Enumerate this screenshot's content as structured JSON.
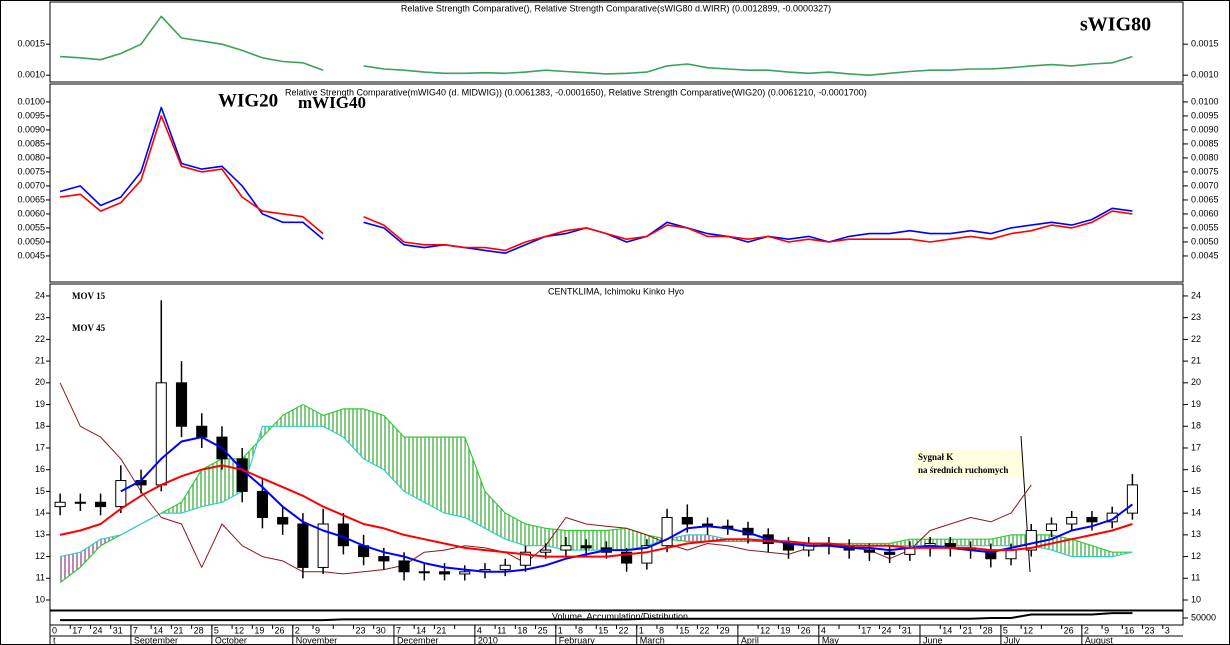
{
  "chart_data": [
    {
      "type": "line",
      "title": "Relative Strength Comparative(), Relative Strength Comparative(sWIG80 d.WIRR) (0.0012899, -0.0000327)",
      "ylim": [
        0.00089,
        0.00218
      ],
      "yticks": [
        {
          "value": 0.001,
          "label": "0.0010"
        },
        0.0015
      ],
      "tick_color": "#ff0000",
      "series": [
        {
          "name": "sWIG80",
          "color": "#3aa35a",
          "values": [
            0.0013,
            0.00128,
            0.00125,
            0.00135,
            0.0015,
            0.00195,
            0.0016,
            0.00155,
            0.0015,
            0.0014,
            0.00128,
            0.00122,
            0.0012,
            0.00108,
            null,
            0.00115,
            0.0011,
            0.00108,
            0.00105,
            0.00103,
            0.00103,
            0.00104,
            0.00103,
            0.00105,
            0.00108,
            0.00106,
            0.00104,
            0.00102,
            0.00103,
            0.00105,
            0.00115,
            0.00118,
            0.00112,
            0.0011,
            0.00108,
            0.00108,
            0.00105,
            0.00103,
            0.00105,
            0.00102,
            0.001,
            0.00103,
            0.00106,
            0.00108,
            0.00108,
            0.0011,
            0.0011,
            0.00112,
            0.00115,
            0.00117,
            0.00115,
            0.00118,
            0.0012,
            0.0013,
            null,
            null
          ]
        }
      ]
    },
    {
      "type": "line",
      "title": "Relative Strength Comparative(mWIG40 (d. MIDWIG)) (0.0061383, -0.0001650), Relative Strength Comparative(WIG20) (0.0061210, -0.0001700)",
      "ylim": [
        0.00357,
        0.01064
      ],
      "yticks": [
        0.0045,
        {
          "value": 0.005,
          "label": "0.0050"
        },
        0.0055,
        {
          "value": 0.006,
          "label": "0.0060"
        },
        0.0065,
        {
          "value": 0.007,
          "label": "0.0070"
        },
        0.0075,
        {
          "value": 0.008,
          "label": "0.0080"
        },
        0.0085,
        {
          "value": 0.009,
          "label": "0.0090"
        },
        0.0095,
        {
          "value": 0.01,
          "label": "0.0100"
        }
      ],
      "tick_color": "#ff0000",
      "series": [
        {
          "name": "WIG20",
          "color": "#0000ff",
          "values": [
            0.0068,
            0.007,
            0.0063,
            0.0066,
            0.0075,
            0.0098,
            0.0078,
            0.0076,
            0.0077,
            0.007,
            0.006,
            0.0057,
            0.0057,
            0.0051,
            null,
            0.0057,
            0.0055,
            0.0049,
            0.0048,
            0.0049,
            0.0048,
            0.0047,
            0.0046,
            0.0049,
            0.0052,
            0.0053,
            0.0055,
            0.0053,
            0.005,
            0.0052,
            0.0057,
            0.0055,
            0.0053,
            0.0052,
            0.005,
            0.0052,
            0.0051,
            0.0052,
            0.005,
            0.0052,
            0.0053,
            0.0053,
            0.0054,
            0.0053,
            0.0053,
            0.0054,
            0.0053,
            0.0055,
            0.0056,
            0.0057,
            0.0056,
            0.0058,
            0.0062,
            0.0061,
            null,
            null
          ]
        },
        {
          "name": "mWIG40",
          "color": "#ff0000",
          "values": [
            0.0066,
            0.0067,
            0.0061,
            0.0064,
            0.0072,
            0.0095,
            0.0077,
            0.0075,
            0.0076,
            0.0066,
            0.0061,
            0.006,
            0.0059,
            0.0053,
            null,
            0.0059,
            0.0056,
            0.005,
            0.0049,
            0.0049,
            0.0048,
            0.0048,
            0.0047,
            0.005,
            0.0052,
            0.0054,
            0.0055,
            0.0053,
            0.0051,
            0.0052,
            0.0056,
            0.0055,
            0.0052,
            0.0052,
            0.0051,
            0.0052,
            0.005,
            0.0051,
            0.005,
            0.0051,
            0.0051,
            0.0051,
            0.0051,
            0.005,
            0.0051,
            0.0052,
            0.0051,
            0.0053,
            0.0054,
            0.0056,
            0.0055,
            0.0057,
            0.0061,
            0.006,
            null,
            null
          ]
        }
      ]
    },
    {
      "type": "candlestick",
      "title": "CENTKLIMA, Ichimoku Kinko Hyo",
      "ylim": [
        9.54,
        24.55
      ],
      "yticks": [
        10,
        11,
        12,
        13,
        14,
        15,
        16,
        17,
        18,
        19,
        20,
        21,
        22,
        23,
        24
      ],
      "tick_color": "#000000",
      "open": [
        14.3,
        14.5,
        14.5,
        14.3,
        15.5,
        15.3,
        20,
        18,
        17.5,
        16.5,
        15,
        13.8,
        13.5,
        11.5,
        13.5,
        12.5,
        12,
        11.8,
        11.3,
        11.3,
        11.2,
        11.3,
        11.4,
        11.6,
        12.2,
        12.3,
        12.5,
        12.4,
        12.2,
        11.7,
        12.5,
        13.8,
        13.5,
        13.4,
        13.3,
        13,
        12.6,
        12.3,
        12.6,
        12.5,
        12.3,
        12.2,
        12.1,
        12.4,
        12.6,
        12.4,
        12.3,
        11.9,
        12.3,
        13.2,
        13.5,
        13.8,
        13.6,
        14,
        null,
        null
      ],
      "high": [
        14.9,
        14.9,
        14.9,
        16.2,
        16,
        23.8,
        21,
        18.6,
        18,
        17,
        15.6,
        14.3,
        14,
        14.2,
        14,
        13,
        12.4,
        12.2,
        11.7,
        11.7,
        11.6,
        11.7,
        11.9,
        12.5,
        12.6,
        12.9,
        12.8,
        12.7,
        12.4,
        12.8,
        14.2,
        14.4,
        13.8,
        13.7,
        13.6,
        13.3,
        12.9,
        12.9,
        12.9,
        12.8,
        12.6,
        12.5,
        12.7,
        12.9,
        12.9,
        12.7,
        12.6,
        12.6,
        13.5,
        13.8,
        14.1,
        14.1,
        14.3,
        15.8,
        null,
        null
      ],
      "low": [
        13.9,
        14.1,
        13.9,
        14,
        14.9,
        15,
        17.5,
        17,
        16,
        14.5,
        13.3,
        13,
        11,
        11.2,
        12.1,
        11.6,
        11.4,
        10.9,
        10.9,
        10.9,
        10.9,
        11,
        11.1,
        11.3,
        11.9,
        12,
        12,
        11.9,
        11.3,
        11.4,
        12.2,
        13.1,
        13,
        13,
        12.6,
        12.2,
        11.9,
        12,
        12.1,
        11.9,
        11.8,
        11.7,
        11.8,
        12,
        12,
        11.9,
        11.5,
        11.6,
        12,
        12.9,
        13.2,
        13.2,
        13.3,
        13.7,
        null,
        null
      ],
      "close": [
        14.5,
        14.5,
        14.3,
        15.5,
        15.3,
        20,
        18,
        17.5,
        16.5,
        15,
        13.8,
        13.5,
        11.5,
        13.5,
        12.5,
        12,
        11.8,
        11.3,
        11.3,
        11.2,
        11.3,
        11.4,
        11.6,
        12.2,
        12.3,
        12.5,
        12.4,
        12.2,
        11.7,
        12.5,
        13.8,
        13.5,
        13.4,
        13.3,
        13,
        12.6,
        12.3,
        12.6,
        12.5,
        12.3,
        12.2,
        12.1,
        12.4,
        12.6,
        12.4,
        12.3,
        11.9,
        12.3,
        13.2,
        13.5,
        13.8,
        13.6,
        14,
        15.3,
        null,
        null
      ],
      "series": [
        {
          "name": "MOV 15",
          "color": "#0000ff",
          "values": [
            null,
            null,
            null,
            15,
            15.5,
            16.5,
            17.3,
            17.5,
            17,
            16,
            15.2,
            14.3,
            13.6,
            13.2,
            12.9,
            12.5,
            12.2,
            12,
            11.7,
            11.5,
            11.4,
            11.3,
            11.3,
            11.4,
            11.6,
            11.9,
            12.1,
            12.3,
            12.3,
            12.4,
            12.8,
            13.3,
            13.4,
            13.3,
            13.1,
            12.8,
            12.6,
            12.5,
            12.5,
            12.4,
            12.4,
            12.3,
            12.4,
            12.5,
            12.4,
            12.3,
            12.2,
            12.4,
            12.6,
            12.8,
            13.2,
            13.4,
            13.7,
            14.4,
            null,
            null
          ]
        },
        {
          "name": "MOV 45",
          "color": "#ff0000",
          "values": [
            13,
            13.2,
            13.5,
            14.2,
            14.8,
            15.3,
            15.7,
            16,
            16.2,
            16,
            15.6,
            15.2,
            14.8,
            14.3,
            13.9,
            13.5,
            13.3,
            13,
            12.8,
            12.6,
            12.4,
            12.3,
            12.2,
            12.1,
            12,
            12,
            12,
            12,
            12.1,
            12.2,
            12.4,
            12.6,
            12.7,
            12.8,
            12.8,
            12.7,
            12.7,
            12.6,
            12.6,
            12.5,
            12.5,
            12.5,
            12.4,
            12.4,
            12.4,
            12.4,
            12.3,
            12.3,
            12.4,
            12.6,
            12.8,
            13,
            13.2,
            13.5,
            null,
            null
          ]
        }
      ],
      "span_a_color": "#33cc33",
      "span_a": [
        10.8,
        11.5,
        12.5,
        13,
        13.5,
        14,
        14.5,
        16,
        16.5,
        16.5,
        17.5,
        18.5,
        19,
        18.5,
        18.8,
        18.8,
        18.5,
        17.5,
        17.5,
        17.5,
        17.5,
        15,
        14,
        13.5,
        13.3,
        13.2,
        13.2,
        13.2,
        13.3,
        13,
        12.8,
        12.7,
        12.7,
        12.7,
        12.7,
        12.7,
        12.6,
        12.6,
        12.6,
        12.6,
        12.6,
        12.6,
        12.8,
        12.8,
        12.8,
        12.8,
        12.8,
        13,
        13,
        13,
        12.8,
        12.5,
        12.2,
        12.2,
        null,
        null
      ],
      "span_b_color": "#33cccc",
      "span_b": [
        12,
        12.2,
        12.8,
        13,
        13.5,
        14,
        14,
        14.3,
        14.5,
        15,
        18,
        18,
        18,
        18,
        17.5,
        16.5,
        16,
        15,
        14.5,
        14,
        13.8,
        13.3,
        12.8,
        12.5,
        12.5,
        12.3,
        12.3,
        12.3,
        12.3,
        12.5,
        12.8,
        13,
        13,
        12.8,
        12.8,
        12.8,
        12.7,
        12.5,
        12.5,
        12.5,
        12.5,
        12.5,
        12.5,
        12.5,
        12.5,
        12.5,
        12.5,
        12.5,
        12.5,
        12.3,
        12,
        12,
        12,
        12.2,
        null,
        null
      ],
      "lagging_color": "#8b1a1a",
      "lagging": [
        20,
        18,
        17.5,
        16.5,
        15,
        13.8,
        13.5,
        11.5,
        13.5,
        12.5,
        12,
        11.8,
        11.3,
        11.3,
        11.2,
        11.3,
        11.4,
        11.6,
        12.2,
        12.3,
        12.5,
        12.4,
        12.2,
        11.7,
        12.5,
        13.8,
        13.5,
        13.4,
        13.3,
        13,
        12.6,
        12.3,
        12.6,
        12.5,
        12.3,
        12.2,
        12.1,
        12.4,
        12.6,
        12.4,
        12.3,
        11.9,
        12.3,
        13.2,
        13.5,
        13.8,
        13.6,
        14,
        15.3,
        null,
        null,
        null,
        null,
        null,
        null,
        null
      ],
      "annotation": [
        "Sygnał K",
        "na średnich ruchomych"
      ]
    },
    {
      "type": "line",
      "title": "Volume, Accumulation/Distribution",
      "ylim": [
        0,
        100000
      ],
      "yticks": [
        50000
      ],
      "tick_color": "#000000",
      "series": [
        {
          "color": "#000000",
          "values": [
            35000,
            35000,
            35000,
            35000,
            35000,
            35000,
            35000,
            35000,
            35000,
            35000,
            35000,
            35000,
            35000,
            35000,
            40000,
            40000,
            40000,
            40000,
            40000,
            40000,
            40000,
            40000,
            40000,
            40000,
            40000,
            40000,
            40000,
            40000,
            40000,
            45000,
            45000,
            45000,
            45000,
            45000,
            45000,
            45000,
            45000,
            45000,
            45000,
            45000,
            45000,
            45000,
            45000,
            45000,
            45000,
            45000,
            50000,
            50000,
            75000,
            75000,
            75000,
            75000,
            85000,
            85000,
            null,
            null
          ]
        }
      ],
      "categories": [
        "0",
        "17",
        "24",
        "31",
        "7",
        "14",
        "21",
        "28",
        "5",
        "12",
        "19",
        "26",
        "2",
        "9",
        null,
        "23",
        "30",
        "7",
        "14",
        "21",
        null,
        "4",
        "11",
        "18",
        "25",
        "1",
        "8",
        "15",
        "22",
        "1",
        "8",
        "15",
        "22",
        "29",
        null,
        "12",
        "19",
        "26",
        "4",
        null,
        "17",
        "24",
        "31",
        null,
        "14",
        "21",
        "28",
        "5",
        "12",
        null,
        "26",
        "2",
        "9",
        "16",
        "23",
        "3"
      ],
      "category_groups": [
        "t",
        null,
        null,
        null,
        "September",
        null,
        null,
        null,
        "October",
        null,
        null,
        null,
        "November",
        null,
        null,
        null,
        null,
        "December",
        null,
        null,
        null,
        "2010",
        null,
        null,
        null,
        "February",
        null,
        null,
        null,
        "March",
        null,
        null,
        null,
        null,
        "April",
        null,
        null,
        null,
        "May",
        null,
        null,
        null,
        null,
        "June",
        null,
        null,
        null,
        "July",
        null,
        null,
        null,
        "August",
        null,
        null,
        null,
        null
      ]
    }
  ]
}
